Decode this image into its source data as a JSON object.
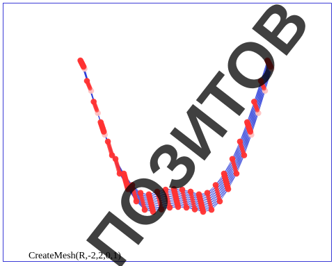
{
  "caption": "CreateMesh(R,-2,2,0,1)",
  "watermark_text": "ПОЗИТОВ",
  "colors": {
    "frame_border": "#3a3ad6",
    "mesh_line": "#2f3fd8",
    "node_fill": "#ff3333",
    "node_faded": "#ffc0c0",
    "watermark": "#000000"
  },
  "mesh": {
    "u_range": [
      -2,
      2
    ],
    "v_range": [
      0,
      1
    ],
    "rows": 9,
    "cols": 25
  }
}
